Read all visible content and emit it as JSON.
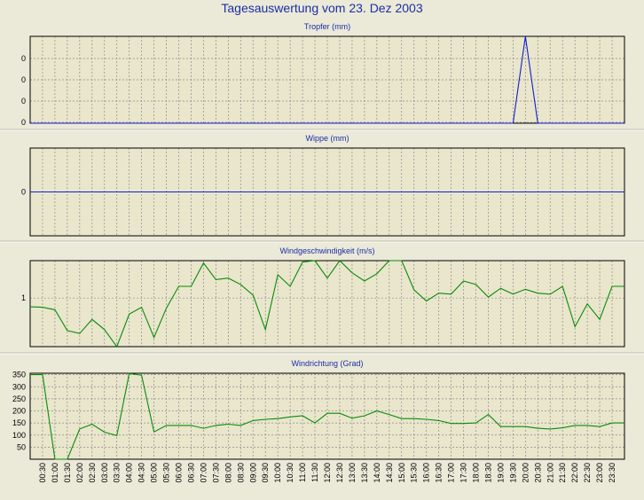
{
  "title": "Tagesauswertung vom 23. Dez 2003",
  "colors": {
    "background": "#ebe9d8",
    "plot": "#e9e6cc",
    "grid": "#8a8a8a",
    "title": "#1c2ea8",
    "blue_series": "#1020d0",
    "green_series": "#0a8a0a"
  },
  "chart_data": [
    {
      "type": "line",
      "title": "Tropfer (mm)",
      "yticks": [
        "0",
        "0",
        "0",
        "0"
      ],
      "grid": true,
      "color": "#1020d0",
      "ylim": [
        0,
        1
      ],
      "x_step_minutes": 30,
      "x_start_minutes": 0,
      "values": [
        0,
        0,
        0,
        0,
        0,
        0,
        0,
        0,
        0,
        0,
        0,
        0,
        0,
        0,
        0,
        0,
        0,
        0,
        0,
        0,
        0,
        0,
        0,
        0,
        0,
        0,
        0,
        0,
        0,
        0,
        0,
        0,
        0,
        0,
        0,
        0,
        0,
        0,
        0,
        0,
        1,
        0,
        0,
        0,
        0,
        0,
        0,
        0,
        0
      ]
    },
    {
      "type": "line",
      "title": "Wippe (mm)",
      "yticks": [
        "0"
      ],
      "grid": true,
      "color": "#1020d0",
      "ylim": [
        -1,
        1
      ],
      "x_step_minutes": 30,
      "x_start_minutes": 0,
      "values": [
        0,
        0,
        0,
        0,
        0,
        0,
        0,
        0,
        0,
        0,
        0,
        0,
        0,
        0,
        0,
        0,
        0,
        0,
        0,
        0,
        0,
        0,
        0,
        0,
        0,
        0,
        0,
        0,
        0,
        0,
        0,
        0,
        0,
        0,
        0,
        0,
        0,
        0,
        0,
        0,
        0,
        0,
        0,
        0,
        0,
        0,
        0,
        0,
        0
      ]
    },
    {
      "type": "line",
      "title": "Windgeschwindigkeit (m/s)",
      "yticks": [
        "1"
      ],
      "grid": true,
      "color": "#0a8a0a",
      "ylim": [
        0,
        1.77
      ],
      "x_step_minutes": 30,
      "x_start_minutes": 0,
      "values": [
        0.82,
        0.81,
        0.76,
        0.33,
        0.27,
        0.56,
        0.35,
        0,
        0.67,
        0.81,
        0.19,
        0.79,
        1.24,
        1.24,
        1.72,
        1.38,
        1.41,
        1.28,
        1.06,
        0.35,
        1.48,
        1.24,
        1.74,
        1.77,
        1.41,
        1.77,
        1.52,
        1.35,
        1.5,
        1.77,
        1.77,
        1.17,
        0.94,
        1.1,
        1.08,
        1.35,
        1.28,
        1.02,
        1.2,
        1.08,
        1.18,
        1.1,
        1.08,
        1.24,
        0.41,
        0.88,
        0.56,
        1.24,
        1.24
      ]
    },
    {
      "type": "line",
      "title": "Windrichtung (Grad)",
      "yticks": [
        {
          "label": "350",
          "value": 350
        },
        {
          "label": "300",
          "value": 300
        },
        {
          "label": "250",
          "value": 250
        },
        {
          "label": "200",
          "value": 200
        },
        {
          "label": "150",
          "value": 150
        },
        {
          "label": "100",
          "value": 100
        },
        {
          "label": "50",
          "value": 50
        }
      ],
      "grid": true,
      "color": "#0a8a0a",
      "ylim": [
        0,
        356
      ],
      "x_step_minutes": 30,
      "x_start_minutes": 0,
      "values": [
        350,
        350,
        0,
        0,
        125,
        145,
        112,
        98,
        355,
        348,
        113,
        140,
        140,
        140,
        128,
        140,
        145,
        140,
        160,
        165,
        168,
        175,
        180,
        150,
        190,
        190,
        170,
        180,
        200,
        185,
        168,
        168,
        165,
        160,
        148,
        148,
        150,
        185,
        135,
        135,
        135,
        128,
        125,
        130,
        140,
        140,
        135,
        150,
        150
      ]
    }
  ],
  "x_ticks": [
    "00:30",
    "01:00",
    "01:30",
    "02:00",
    "02:30",
    "03:00",
    "03:30",
    "04:00",
    "04:30",
    "05:00",
    "05:30",
    "06:00",
    "06:30",
    "07:00",
    "07:30",
    "08:00",
    "08:30",
    "09:00",
    "09:30",
    "10:00",
    "10:30",
    "11:00",
    "11:30",
    "12:00",
    "12:30",
    "13:00",
    "13:30",
    "14:00",
    "14:30",
    "15:00",
    "15:30",
    "16:00",
    "16:30",
    "17:00",
    "17:30",
    "18:00",
    "18:30",
    "19:00",
    "19:30",
    "20:00",
    "20:30",
    "21:00",
    "21:30",
    "22:00",
    "22:30",
    "23:00",
    "23:30"
  ]
}
